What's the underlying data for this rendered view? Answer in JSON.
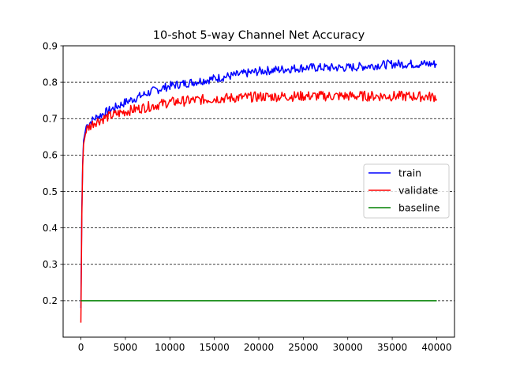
{
  "chart_data": {
    "type": "line",
    "title": "10-shot 5-way Channel Net Accuracy",
    "xlabel": "",
    "ylabel": "",
    "xlim": [
      -2000,
      42000
    ],
    "ylim": [
      0.1,
      0.9
    ],
    "x_ticks": [
      0,
      5000,
      10000,
      15000,
      20000,
      25000,
      30000,
      35000,
      40000
    ],
    "y_ticks": [
      0.2,
      0.3,
      0.4,
      0.5,
      0.6,
      0.7,
      0.8,
      0.9
    ],
    "grid": "horizontal dashed",
    "legend_position": "center-right",
    "x_step": 100,
    "x_max": 40000,
    "series": [
      {
        "name": "train",
        "color": "#0000ff",
        "trend": [
          [
            0,
            0.18
          ],
          [
            100,
            0.45
          ],
          [
            200,
            0.58
          ],
          [
            300,
            0.64
          ],
          [
            600,
            0.68
          ],
          [
            1500,
            0.7
          ],
          [
            3000,
            0.72
          ],
          [
            5000,
            0.745
          ],
          [
            8000,
            0.775
          ],
          [
            10000,
            0.79
          ],
          [
            15000,
            0.81
          ],
          [
            20000,
            0.83
          ],
          [
            25000,
            0.84
          ],
          [
            30000,
            0.84
          ],
          [
            35000,
            0.85
          ],
          [
            40000,
            0.85
          ]
        ],
        "noise": 0.012
      },
      {
        "name": "validate",
        "color": "#ff0000",
        "trend": [
          [
            0,
            0.14
          ],
          [
            100,
            0.43
          ],
          [
            200,
            0.57
          ],
          [
            300,
            0.63
          ],
          [
            600,
            0.67
          ],
          [
            1500,
            0.69
          ],
          [
            3000,
            0.705
          ],
          [
            5000,
            0.72
          ],
          [
            8000,
            0.735
          ],
          [
            10000,
            0.745
          ],
          [
            15000,
            0.755
          ],
          [
            20000,
            0.76
          ],
          [
            25000,
            0.762
          ],
          [
            30000,
            0.762
          ],
          [
            35000,
            0.762
          ],
          [
            40000,
            0.76
          ]
        ],
        "noise": 0.014
      },
      {
        "name": "baseline",
        "color": "#008000",
        "x": [
          0,
          40000
        ],
        "values": [
          0.2,
          0.2
        ]
      }
    ]
  }
}
